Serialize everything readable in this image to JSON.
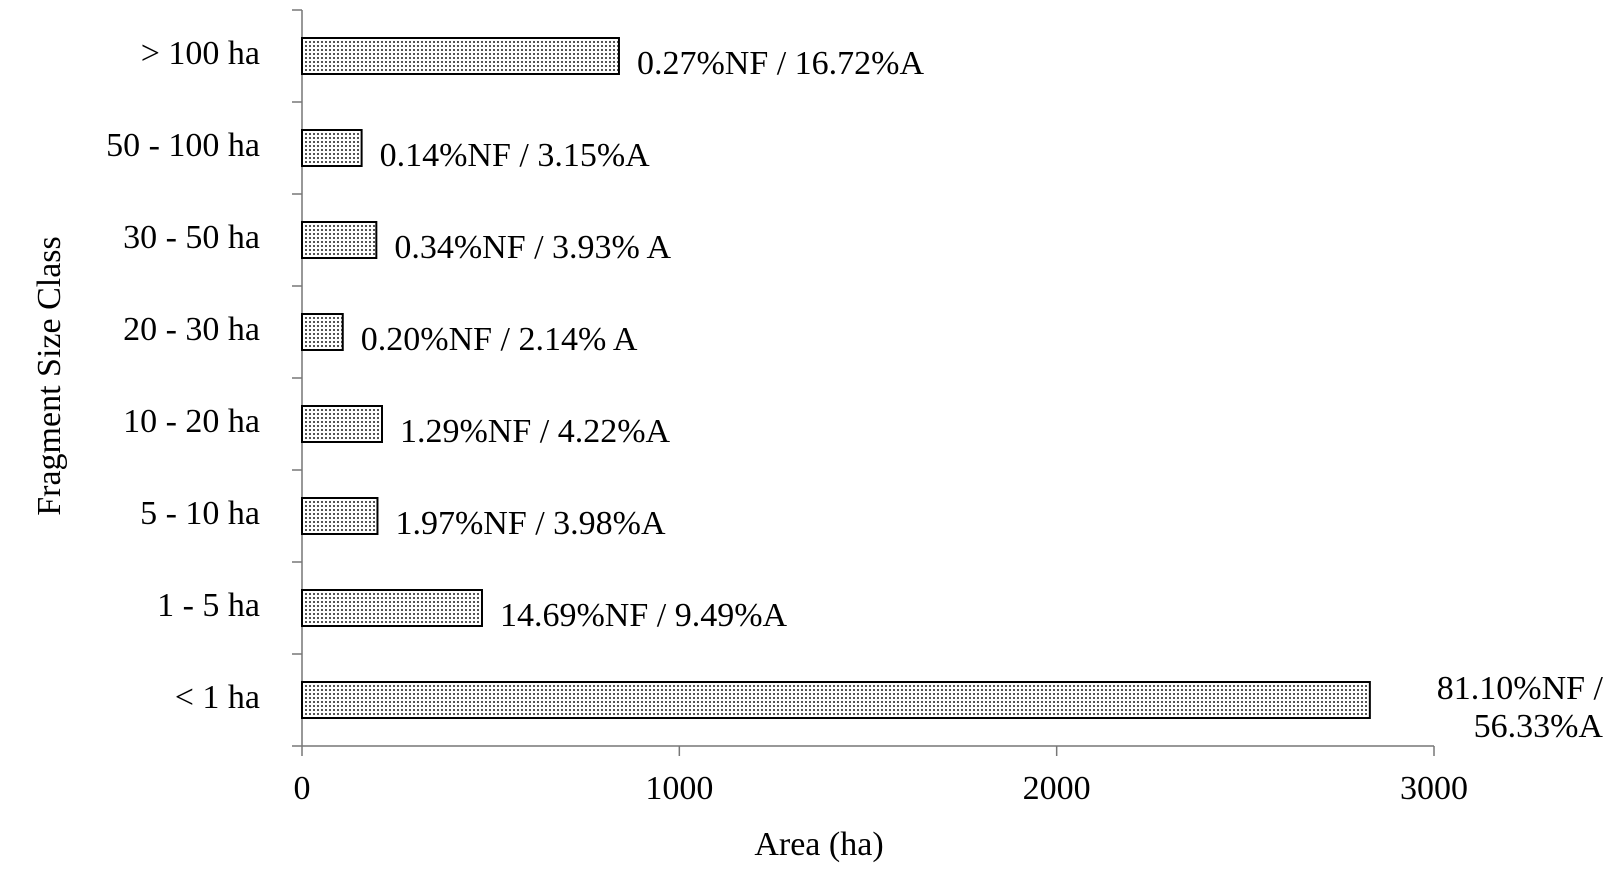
{
  "chart_data": {
    "type": "bar",
    "orientation": "horizontal",
    "x_label": "Area (ha)",
    "y_label": "Fragment Size Class",
    "categories": [
      "> 100 ha",
      "50 - 100 ha",
      "30 - 50 ha",
      "20 - 30 ha",
      "10 - 20 ha",
      "5 - 10 ha",
      "1 - 5 ha",
      "< 1 ha"
    ],
    "values": [
      840,
      158,
      197,
      108,
      212,
      200,
      477,
      2830
    ],
    "value_labels": [
      "0.27%NF / 16.72%A",
      "0.14%NF / 3.15%A",
      "0.34%NF / 3.93% A",
      "0.20%NF / 2.14% A",
      "1.29%NF / 4.22%A",
      "1.97%NF / 3.98%A",
      "14.69%NF / 9.49%A",
      "81.10%NF / 56.33%A"
    ],
    "color": "#555555",
    "xlim": [
      0,
      3000
    ],
    "xticks": [
      0,
      1000,
      2000,
      3000
    ],
    "grid": false
  }
}
